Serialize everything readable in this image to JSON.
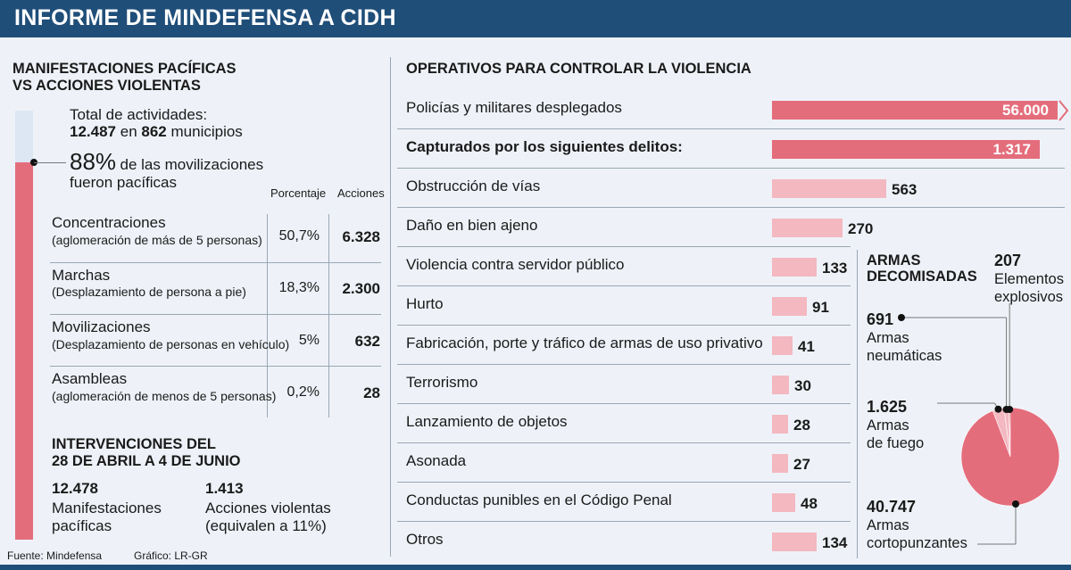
{
  "title": "INFORME DE MINDEFENSA A CIDH",
  "left": {
    "heading_line1": "MANIFESTACIONES PACÍFICAS",
    "heading_line2": "VS ACCIONES VIOLENTAS",
    "total_label": "Total de actividades:",
    "total_value": "12.487",
    "total_mid": "en",
    "municipios_value": "862",
    "municipios_label": "municipios",
    "pct_big": "88%",
    "pct_text1": "de las movilizaciones",
    "pct_text2": "fueron pacíficas",
    "peaceful_fraction": 0.88,
    "col_pct": "Porcentaje",
    "col_acc": "Acciones",
    "rows": [
      {
        "name": "Concentraciones",
        "desc": "(aglomeración de más de 5 personas)",
        "pct": "50,7%",
        "acc": "6.328"
      },
      {
        "name": "Marchas",
        "desc": "(Desplazamiento de persona a pie)",
        "pct": "18,3%",
        "acc": "2.300"
      },
      {
        "name": "Movilizaciones",
        "desc": "(Desplazamiento de personas en vehículo)",
        "pct": "5%",
        "acc": "632"
      },
      {
        "name": "Asambleas",
        "desc": "(aglomeración de menos de 5 personas)",
        "pct": "0,2%",
        "acc": "28"
      }
    ],
    "interv_line1": "INTERVENCIONES DEL",
    "interv_line2": "28 DE ABRIL A 4 DE JUNIO",
    "interv": [
      {
        "value": "12.478",
        "line1": "Manifestaciones",
        "line2": "pacíficas"
      },
      {
        "value": "1.413",
        "line1": "Acciones violentas",
        "line2": "(equivalen a 11%)"
      }
    ]
  },
  "footer": {
    "source": "Fuente: Mindefensa",
    "graphic": "Gráfico: LR-GR"
  },
  "operativos": {
    "heading": "OPERATIVOS PARA CONTROLAR LA VIOLENCIA",
    "rows": [
      {
        "label": "Policías y militares desplegados",
        "display": "56.000"
      },
      {
        "label": "Capturados por los siguientes delitos:",
        "display": "1.317"
      },
      {
        "label": "Obstrucción de vías",
        "display": "563"
      },
      {
        "label": "Daño en bien ajeno",
        "display": "270"
      },
      {
        "label": "Violencia contra servidor público",
        "display": "133"
      },
      {
        "label": "Hurto",
        "display": "91"
      },
      {
        "label": "Fabricación, porte y tráfico de armas de uso privativo",
        "display": "41"
      },
      {
        "label": "Terrorismo",
        "display": "30"
      },
      {
        "label": "Lanzamiento de objetos",
        "display": "28"
      },
      {
        "label": "Asonada",
        "display": "27"
      },
      {
        "label": "Conductas punibles en el Código Penal",
        "display": "48"
      },
      {
        "label": "Otros",
        "display": "134"
      }
    ]
  },
  "armas": {
    "heading_line1": "ARMAS",
    "heading_line2": "DECOMISADAS",
    "items": [
      {
        "value": "207",
        "line1": "Elementos",
        "line2": "explosivos"
      },
      {
        "value": "691",
        "line1": "Armas",
        "line2": "neumáticas"
      },
      {
        "value": "1.625",
        "line1": "Armas",
        "line2": "de fuego"
      },
      {
        "value": "40.747",
        "line1": "Armas",
        "line2": "cortopunzantes"
      }
    ]
  },
  "chart_data": [
    {
      "type": "bar",
      "title": "OPERATIVOS PARA CONTROLAR LA VIOLENCIA",
      "categories": [
        "Policías y militares desplegados",
        "Capturados por los siguientes delitos:",
        "Obstrucción de vías",
        "Daño en bien ajeno",
        "Violencia contra servidor público",
        "Hurto",
        "Fabricación, porte y tráfico de armas de uso privativo",
        "Terrorismo",
        "Lanzamiento de objetos",
        "Asonada",
        "Conductas punibles en el Código Penal",
        "Otros"
      ],
      "values": [
        56000,
        1317,
        563,
        270,
        133,
        91,
        41,
        30,
        28,
        27,
        48,
        134
      ]
    },
    {
      "type": "pie",
      "title": "ARMAS DECOMISADAS",
      "categories": [
        "Elementos explosivos",
        "Armas neumáticas",
        "Armas de fuego",
        "Armas cortopunzantes"
      ],
      "values": [
        207,
        691,
        1625,
        40747
      ],
      "colors": [
        "#e46d7c",
        "#f3b8c0",
        "#f3b8c0",
        "#e46d7c"
      ]
    }
  ],
  "colors": {
    "accent": "#e46d7c",
    "light": "#f3b8c0",
    "navy": "#1f4e79",
    "background": "#eef2f8"
  }
}
